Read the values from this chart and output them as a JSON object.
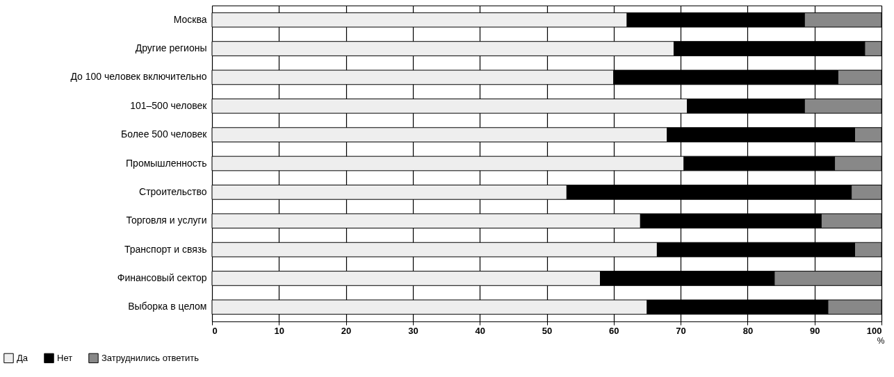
{
  "chart_data": {
    "type": "bar",
    "orientation": "horizontal",
    "stacked": true,
    "xlabel": "%",
    "categories": [
      "Москва",
      "Другие регионы",
      "До 100 человек включительно",
      "101–500 человек",
      "Более 500 человек",
      "Промышленность",
      "Строительство",
      "Торговля и услуги",
      "Транспорт и связь",
      "Финансовый сектор",
      "Выборка в целом"
    ],
    "series": [
      {
        "name": "Да",
        "color": "#eeeeee",
        "values": [
          62,
          69,
          60,
          71,
          68,
          70.5,
          53,
          64,
          66.5,
          58,
          65
        ]
      },
      {
        "name": "Нет",
        "color": "#000000",
        "values": [
          26.5,
          28.5,
          33.5,
          17.5,
          28,
          22.5,
          42.5,
          27,
          29.5,
          26,
          27
        ]
      },
      {
        "name": "Затруднились ответить",
        "color": "#888888",
        "values": [
          11.5,
          2.5,
          6.5,
          11.5,
          4,
          7,
          4.5,
          9,
          4,
          16,
          8
        ]
      }
    ],
    "xlim": [
      0,
      100
    ],
    "xticks": [
      0,
      10,
      20,
      30,
      40,
      50,
      60,
      70,
      80,
      90,
      100
    ],
    "grid": "x",
    "legend": "bottom left"
  }
}
